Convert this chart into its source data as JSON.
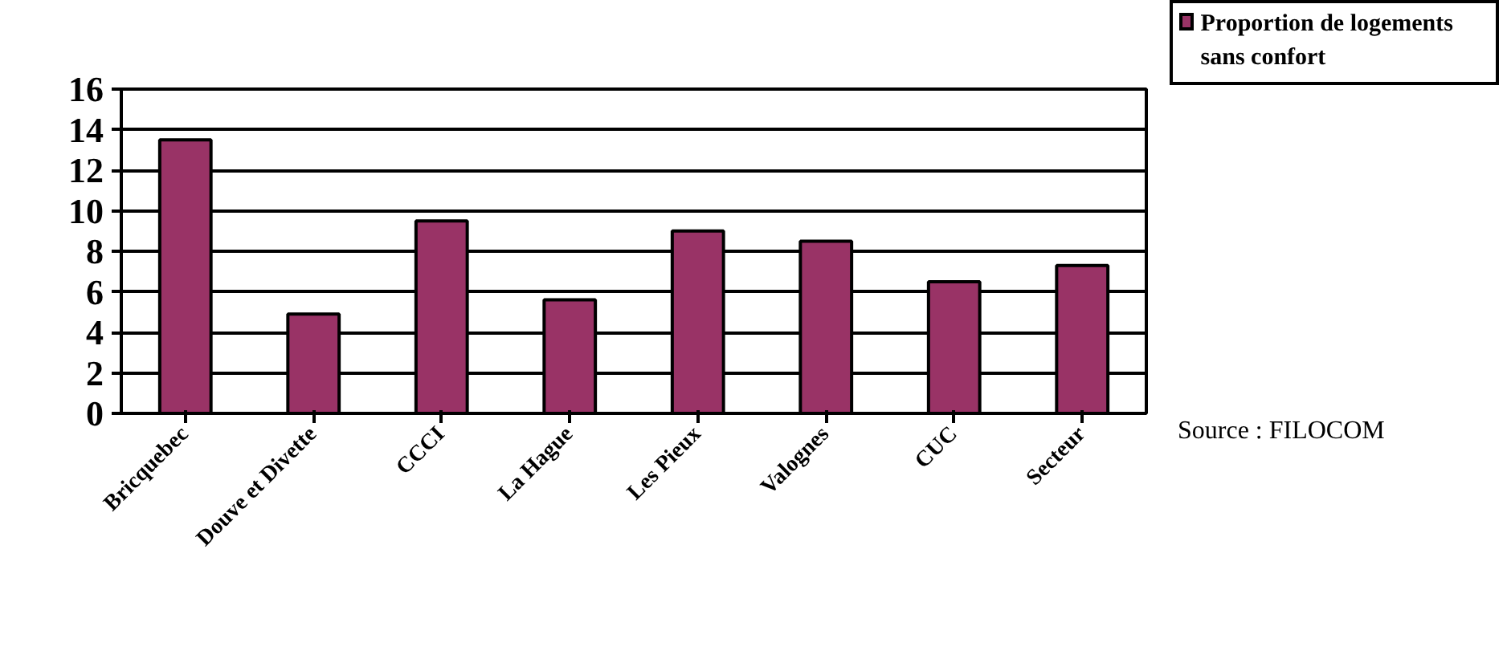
{
  "chart_data": {
    "type": "bar",
    "categories": [
      "Bricquebec",
      "Douve et Divette",
      "CCCI",
      "La Hague",
      "Les Pieux",
      "Valognes",
      "CUC",
      "Secteur"
    ],
    "series": [
      {
        "name": "Proportion de logements sans confort",
        "color": "#993366",
        "values": [
          13.5,
          4.9,
          9.5,
          5.6,
          9.0,
          8.5,
          6.5,
          7.3
        ]
      }
    ],
    "ylim": [
      0,
      16
    ],
    "yticks": [
      0,
      2,
      4,
      6,
      8,
      10,
      12,
      14,
      16
    ],
    "grid": "y",
    "legend": "top right",
    "annotations": [
      "Source : FILOCOM"
    ]
  }
}
